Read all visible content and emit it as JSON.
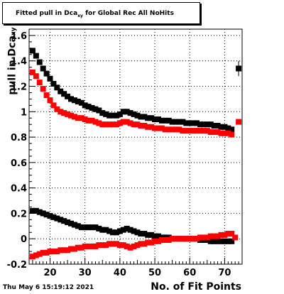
{
  "title": {
    "main": "Fitted pull in Dca",
    "sub": "xy",
    "rest": " for Global Rec All NoHits"
  },
  "footer": {
    "timestamp": "Thu May  6 15:19:12 2021"
  },
  "chart_data": {
    "type": "scatter",
    "title": "Fitted pull in Dca_xy for Global Rec All NoHits",
    "xlabel": "No. of Fit Points",
    "ylabel_main": "pull in Dca",
    "ylabel_sub": "xy",
    "xlim": [
      14,
      75
    ],
    "ylim": [
      -0.2,
      1.65
    ],
    "xticks": [
      20,
      30,
      40,
      50,
      60,
      70
    ],
    "yticks": [
      -0.2,
      0,
      0.2,
      0.4,
      0.6,
      0.8,
      1,
      1.2,
      1.4,
      1.6
    ],
    "ytick_labels": [
      "-0.2",
      "0",
      "0.2",
      "0.4",
      "0.6",
      "0.8",
      "1",
      "1.2",
      "1.4",
      "1.6"
    ],
    "grid": true,
    "series": [
      {
        "color": "#000000",
        "x": [
          15,
          16,
          17,
          18,
          19,
          20,
          21,
          22,
          23,
          24,
          25,
          26,
          27,
          28,
          29,
          30,
          31,
          32,
          33,
          34,
          35,
          36,
          37,
          38,
          39,
          40,
          41,
          42,
          43,
          44,
          45,
          46,
          47,
          48,
          49,
          50,
          51,
          52,
          53,
          54,
          55,
          56,
          57,
          58,
          59,
          60,
          61,
          62,
          63,
          64,
          65,
          66,
          67,
          68,
          69,
          70,
          71,
          72,
          74
        ],
        "y": [
          1.48,
          1.44,
          1.39,
          1.34,
          1.3,
          1.26,
          1.22,
          1.19,
          1.16,
          1.14,
          1.12,
          1.1,
          1.09,
          1.08,
          1.07,
          1.05,
          1.04,
          1.03,
          1.02,
          1.01,
          0.99,
          0.98,
          0.97,
          0.97,
          0.97,
          0.98,
          1.0,
          1.0,
          0.99,
          0.98,
          0.97,
          0.96,
          0.96,
          0.95,
          0.95,
          0.94,
          0.94,
          0.93,
          0.93,
          0.93,
          0.92,
          0.92,
          0.92,
          0.92,
          0.91,
          0.91,
          0.91,
          0.91,
          0.9,
          0.9,
          0.9,
          0.9,
          0.89,
          0.89,
          0.88,
          0.88,
          0.87,
          0.86,
          1.34
        ],
        "err": [
          0,
          0,
          0,
          0,
          0,
          0,
          0,
          0,
          0,
          0,
          0,
          0,
          0,
          0,
          0,
          0,
          0,
          0,
          0,
          0,
          0,
          0,
          0,
          0,
          0,
          0,
          0,
          0,
          0,
          0,
          0,
          0,
          0,
          0,
          0,
          0,
          0,
          0,
          0,
          0,
          0,
          0,
          0,
          0,
          0,
          0,
          0,
          0,
          0,
          0,
          0,
          0,
          0,
          0,
          0,
          0,
          0,
          0,
          0.06
        ]
      },
      {
        "color": "#ff0000",
        "x": [
          15,
          16,
          17,
          18,
          19,
          20,
          21,
          22,
          23,
          24,
          25,
          26,
          27,
          28,
          29,
          30,
          31,
          32,
          33,
          34,
          35,
          36,
          37,
          38,
          39,
          40,
          41,
          42,
          43,
          44,
          45,
          46,
          47,
          48,
          49,
          50,
          51,
          52,
          53,
          54,
          55,
          56,
          57,
          58,
          59,
          60,
          61,
          62,
          63,
          64,
          65,
          66,
          67,
          68,
          69,
          70,
          71,
          72,
          74
        ],
        "y": [
          1.31,
          1.28,
          1.23,
          1.18,
          1.13,
          1.09,
          1.05,
          1.02,
          1.0,
          0.99,
          0.98,
          0.97,
          0.96,
          0.95,
          0.95,
          0.94,
          0.93,
          0.93,
          0.92,
          0.91,
          0.9,
          0.9,
          0.9,
          0.9,
          0.9,
          0.91,
          0.92,
          0.92,
          0.91,
          0.9,
          0.9,
          0.89,
          0.89,
          0.88,
          0.88,
          0.87,
          0.87,
          0.87,
          0.86,
          0.86,
          0.86,
          0.86,
          0.86,
          0.85,
          0.85,
          0.85,
          0.85,
          0.85,
          0.85,
          0.85,
          0.85,
          0.84,
          0.84,
          0.84,
          0.83,
          0.83,
          0.83,
          0.82,
          0.92
        ],
        "err": [
          0,
          0,
          0,
          0,
          0,
          0,
          0,
          0,
          0,
          0,
          0,
          0,
          0,
          0,
          0,
          0,
          0,
          0,
          0,
          0,
          0,
          0,
          0,
          0,
          0,
          0,
          0,
          0,
          0,
          0,
          0,
          0,
          0,
          0,
          0,
          0,
          0,
          0,
          0,
          0,
          0,
          0,
          0,
          0,
          0,
          0,
          0,
          0,
          0,
          0,
          0,
          0,
          0,
          0,
          0,
          0,
          0,
          0,
          0.02
        ]
      },
      {
        "color": "#000000",
        "x": [
          15,
          16,
          17,
          18,
          19,
          20,
          21,
          22,
          23,
          24,
          25,
          26,
          27,
          28,
          29,
          30,
          31,
          32,
          33,
          34,
          35,
          36,
          37,
          38,
          39,
          40,
          41,
          42,
          43,
          44,
          45,
          46,
          47,
          48,
          49,
          50,
          51,
          52,
          53,
          54,
          55,
          56,
          57,
          58,
          59,
          60,
          61,
          62,
          63,
          64,
          65,
          66,
          67,
          68,
          69,
          70,
          71,
          72
        ],
        "y": [
          0.22,
          0.22,
          0.21,
          0.2,
          0.19,
          0.18,
          0.17,
          0.16,
          0.15,
          0.14,
          0.13,
          0.12,
          0.11,
          0.1,
          0.09,
          0.09,
          0.09,
          0.09,
          0.09,
          0.08,
          0.07,
          0.07,
          0.06,
          0.05,
          0.05,
          0.06,
          0.07,
          0.08,
          0.07,
          0.06,
          0.05,
          0.04,
          0.04,
          0.03,
          0.03,
          0.02,
          0.02,
          0.01,
          0.01,
          0.01,
          0.0,
          0.0,
          0.0,
          0.0,
          0.0,
          0.0,
          0.0,
          0.0,
          -0.01,
          -0.01,
          -0.01,
          -0.02,
          -0.02,
          -0.02,
          -0.02,
          -0.02,
          -0.02,
          -0.02
        ]
      },
      {
        "color": "#ff0000",
        "x": [
          15,
          16,
          17,
          18,
          19,
          20,
          21,
          22,
          23,
          24,
          25,
          26,
          27,
          28,
          29,
          30,
          31,
          32,
          33,
          34,
          35,
          36,
          37,
          38,
          39,
          40,
          41,
          42,
          43,
          44,
          45,
          46,
          47,
          48,
          49,
          50,
          51,
          52,
          53,
          54,
          55,
          56,
          57,
          58,
          59,
          60,
          61,
          62,
          63,
          64,
          65,
          66,
          67,
          68,
          69,
          70,
          71,
          72,
          73
        ],
        "y": [
          -0.14,
          -0.13,
          -0.12,
          -0.11,
          -0.11,
          -0.1,
          -0.1,
          -0.1,
          -0.09,
          -0.09,
          -0.09,
          -0.08,
          -0.08,
          -0.07,
          -0.07,
          -0.06,
          -0.06,
          -0.06,
          -0.06,
          -0.05,
          -0.05,
          -0.05,
          -0.04,
          -0.04,
          -0.04,
          -0.05,
          -0.05,
          -0.06,
          -0.07,
          -0.06,
          -0.05,
          -0.04,
          -0.04,
          -0.03,
          -0.03,
          -0.02,
          -0.02,
          -0.01,
          -0.01,
          -0.01,
          0.0,
          0.0,
          0.0,
          0.0,
          0.0,
          0.0,
          0.0,
          0.0,
          0.01,
          0.01,
          0.01,
          0.02,
          0.02,
          0.02,
          0.03,
          0.03,
          0.04,
          0.04,
          0.01
        ]
      }
    ]
  }
}
